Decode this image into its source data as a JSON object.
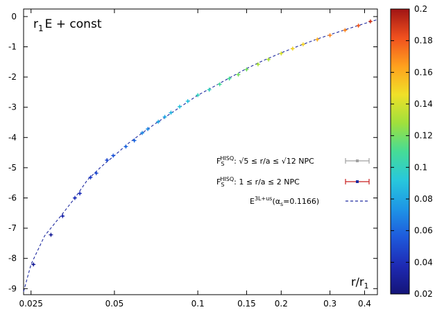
{
  "chart_data": {
    "type": "scatter",
    "title": "",
    "ylabel_annotation": {
      "main": "r",
      "sub": "1",
      "rest": "E + const"
    },
    "xlabel": {
      "main": "r/r",
      "sub": "1"
    },
    "x_scale": "log",
    "xlim": [
      0.0235,
      0.445
    ],
    "ylim": [
      -9.2,
      0.25
    ],
    "x_ticks": [
      0.025,
      0.05,
      0.1,
      0.15,
      0.2,
      0.3,
      0.4
    ],
    "x_tick_labels": [
      "0.025",
      "0.05",
      "0.1",
      "0.15",
      "0.2",
      "0.3",
      "0.4"
    ],
    "y_ticks": [
      0,
      -1,
      -2,
      -3,
      -4,
      -5,
      -6,
      -7,
      -8,
      -9
    ],
    "y_tick_labels": [
      "0",
      "-1",
      "-2",
      "-3",
      "-4",
      "-5",
      "-6",
      "-7",
      "-8",
      "-9"
    ],
    "colorbar": {
      "range": [
        0.02,
        0.2
      ],
      "ticks": [
        0.2,
        0.18,
        0.16,
        0.14,
        0.12,
        0.1,
        0.08,
        0.06,
        0.04,
        0.02
      ],
      "tick_labels": [
        "0.2",
        "0.18",
        "0.16",
        "0.14",
        "0.12",
        "0.1",
        "0.08",
        "0.06",
        "0.04",
        "0.02"
      ],
      "colors": [
        "#1a1aa8",
        "#1e5adc",
        "#1ea0e6",
        "#2ed0d0",
        "#5ae07a",
        "#c8e032",
        "#ffd21e",
        "#ff961e",
        "#f04628",
        "#b41e1e"
      ]
    },
    "legend": {
      "position": "right-middle",
      "entries": [
        {
          "label_sup": "HISQ",
          "label_rest": ": √5 ≤ r/a ≤ √12 NPC",
          "color": "#a0a0a0",
          "style": "errorbar"
        },
        {
          "label_sup": "HISQ",
          "label_rest": ":    1 ≤ r/a ≤    2 NPC",
          "color": "#c81e1e",
          "style": "errorbar"
        },
        {
          "label_main": "E",
          "label_sup": "3L+us",
          "label_rest": "(α",
          "label_sub": "s",
          "label_tail": "=0.1166)",
          "color": "#1e2aa0",
          "style": "dashed"
        }
      ],
      "F_letter": "F",
      "F_sub": "S"
    },
    "series": [
      {
        "name": "E3L+us(αs=0.1166)",
        "type": "line",
        "style": "dashed",
        "x": [
          0.0235,
          0.025,
          0.028,
          0.032,
          0.036,
          0.04,
          0.045,
          0.05,
          0.056,
          0.063,
          0.07,
          0.08,
          0.09,
          0.1,
          0.115,
          0.13,
          0.15,
          0.17,
          0.2,
          0.23,
          0.27,
          0.3,
          0.35,
          0.4,
          0.445
        ],
        "y": [
          -9.1,
          -8.2,
          -7.25,
          -6.6,
          -6.0,
          -5.4,
          -4.95,
          -4.6,
          -4.2,
          -3.85,
          -3.55,
          -3.2,
          -2.88,
          -2.6,
          -2.3,
          -2.03,
          -1.72,
          -1.48,
          -1.2,
          -0.98,
          -0.74,
          -0.6,
          -0.4,
          -0.23,
          -0.1
        ]
      },
      {
        "name": "FS HISQ points",
        "type": "scatter",
        "x": [
          0.0255,
          0.0295,
          0.0325,
          0.036,
          0.0375,
          0.041,
          0.043,
          0.047,
          0.0495,
          0.055,
          0.059,
          0.063,
          0.066,
          0.072,
          0.076,
          0.08,
          0.086,
          0.092,
          0.1,
          0.11,
          0.12,
          0.13,
          0.14,
          0.15,
          0.165,
          0.18,
          0.2,
          0.22,
          0.24,
          0.27,
          0.3,
          0.34,
          0.38,
          0.42
        ],
        "y": [
          -8.2,
          -7.22,
          -6.6,
          -6.0,
          -5.85,
          -5.32,
          -5.18,
          -4.75,
          -4.6,
          -4.3,
          -4.1,
          -3.85,
          -3.72,
          -3.48,
          -3.32,
          -3.18,
          -2.98,
          -2.8,
          -2.6,
          -2.42,
          -2.24,
          -2.05,
          -1.92,
          -1.75,
          -1.58,
          -1.42,
          -1.22,
          -1.06,
          -0.92,
          -0.76,
          -0.62,
          -0.45,
          -0.3,
          -0.16
        ],
        "color_values": [
          0.03,
          0.03,
          0.035,
          0.04,
          0.04,
          0.045,
          0.05,
          0.05,
          0.055,
          0.06,
          0.06,
          0.07,
          0.07,
          0.08,
          0.08,
          0.085,
          0.09,
          0.09,
          0.1,
          0.1,
          0.11,
          0.11,
          0.12,
          0.12,
          0.13,
          0.13,
          0.14,
          0.15,
          0.15,
          0.16,
          0.17,
          0.17,
          0.18,
          0.19
        ]
      }
    ]
  }
}
